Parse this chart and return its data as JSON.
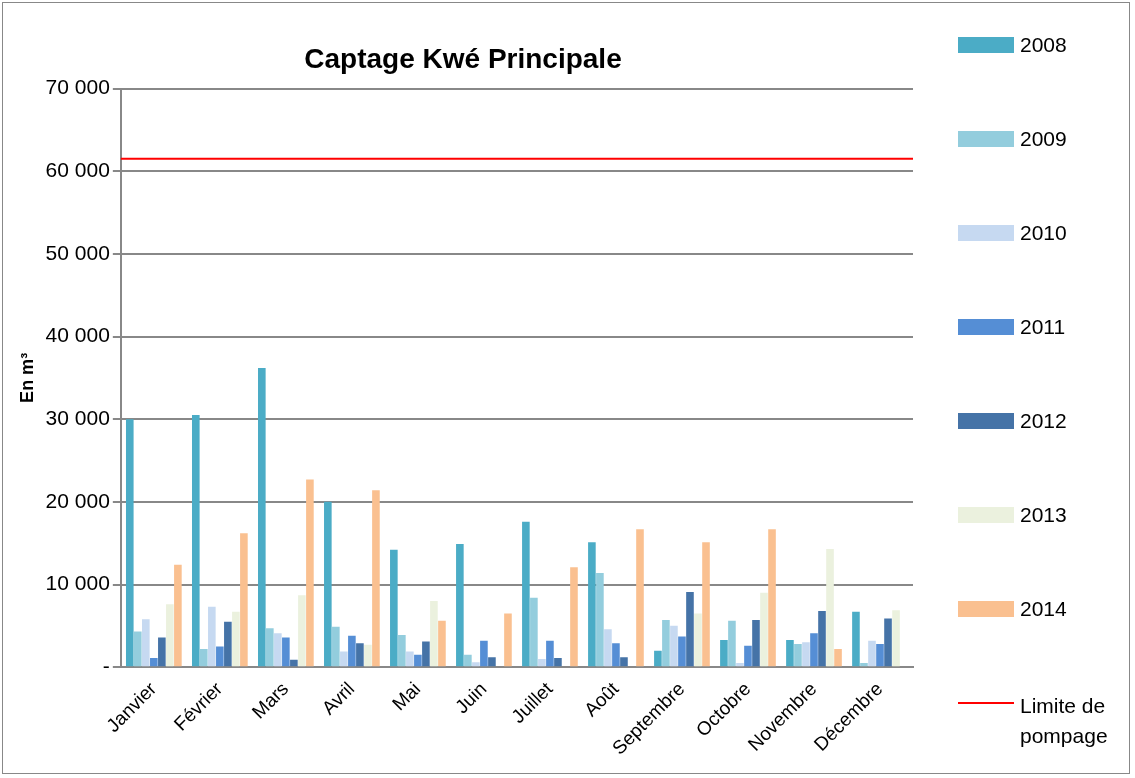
{
  "chart_data": {
    "type": "bar",
    "title": "Captage Kwé Principale",
    "ylabel": "En m³",
    "categories": [
      "Janvier",
      "Février",
      "Mars",
      "Avril",
      "Mai",
      "Juin",
      "Juillet",
      "Août",
      "Septembre",
      "Octobre",
      "Novembre",
      "Décembre"
    ],
    "series": [
      {
        "name": "2008",
        "color": "#4bacc6",
        "values": [
          30000,
          30500,
          36200,
          20000,
          14200,
          14900,
          17600,
          15100,
          2000,
          3300,
          3300,
          6700
        ]
      },
      {
        "name": "2009",
        "color": "#93cddd",
        "values": [
          4300,
          2200,
          4700,
          4900,
          3900,
          1500,
          8400,
          11400,
          5700,
          5600,
          2800,
          500
        ]
      },
      {
        "name": "2010",
        "color": "#c6d9f1",
        "values": [
          5800,
          7300,
          4100,
          1900,
          1900,
          600,
          1000,
          4600,
          5000,
          500,
          3000,
          3200
        ]
      },
      {
        "name": "2011",
        "color": "#558ed5",
        "values": [
          1100,
          2500,
          3600,
          3800,
          1500,
          3200,
          3200,
          2900,
          3700,
          2600,
          4100,
          2800
        ]
      },
      {
        "name": "2012",
        "color": "#4573a7",
        "values": [
          3600,
          5500,
          900,
          2900,
          3100,
          1200,
          1100,
          1200,
          9100,
          5700,
          6800,
          5900
        ]
      },
      {
        "name": "2013",
        "color": "#ebf1de",
        "values": [
          7600,
          6700,
          8700,
          2700,
          8000,
          null,
          null,
          null,
          6500,
          9000,
          14300,
          6900
        ]
      },
      {
        "name": "2014",
        "color": "#fac090",
        "values": [
          12400,
          16200,
          22700,
          21400,
          5600,
          6500,
          12100,
          16700,
          15100,
          16700,
          2200,
          null
        ]
      }
    ],
    "ref_lines": [
      {
        "axis": "y",
        "value": 61500,
        "label": "Limite de pompage",
        "color": "#ff0000"
      }
    ],
    "ylim": [
      0,
      70000
    ],
    "yticks": [
      {
        "value": 0,
        "label": "-"
      },
      {
        "value": 10000,
        "label": "10 000"
      },
      {
        "value": 20000,
        "label": "20 000"
      },
      {
        "value": 30000,
        "label": "30 000"
      },
      {
        "value": 40000,
        "label": "40 000"
      },
      {
        "value": 50000,
        "label": "50 000"
      },
      {
        "value": 60000,
        "label": "60 000"
      },
      {
        "value": 70000,
        "label": "70 000"
      }
    ],
    "grid": "y",
    "legend": "right"
  }
}
